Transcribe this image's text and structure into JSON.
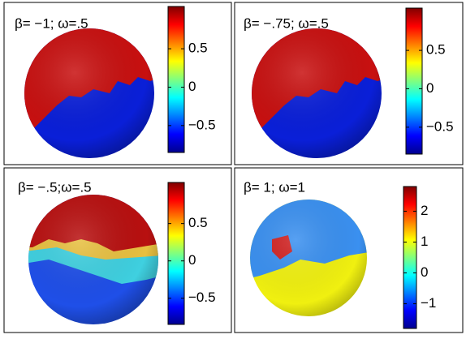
{
  "chart_data": [
    {
      "type": "surface",
      "title": "β= −1; ω=.5",
      "ylim": [
        -0.85,
        1.05
      ],
      "yticks": [
        0.5,
        0,
        {
          "value": -0.5,
          "label": "−0.5"
        }
      ]
    },
    {
      "type": "surface",
      "title": "β= −.75; ω=.5",
      "ylim": [
        -0.85,
        1.05
      ],
      "yticks": [
        0.5,
        0,
        {
          "value": -0.5,
          "label": "−0.5"
        }
      ]
    },
    {
      "type": "surface",
      "title": "β= −.5;ω=.5",
      "ylim": [
        -0.85,
        1.05
      ],
      "yticks": [
        0.5,
        0,
        {
          "value": -0.5,
          "label": "−0.5"
        }
      ]
    },
    {
      "type": "surface",
      "title": "β= 1; ω=1",
      "ylim": [
        -1.8,
        2.8
      ],
      "yticks": [
        2,
        1,
        0,
        {
          "value": -1,
          "label": "−1"
        }
      ]
    }
  ]
}
